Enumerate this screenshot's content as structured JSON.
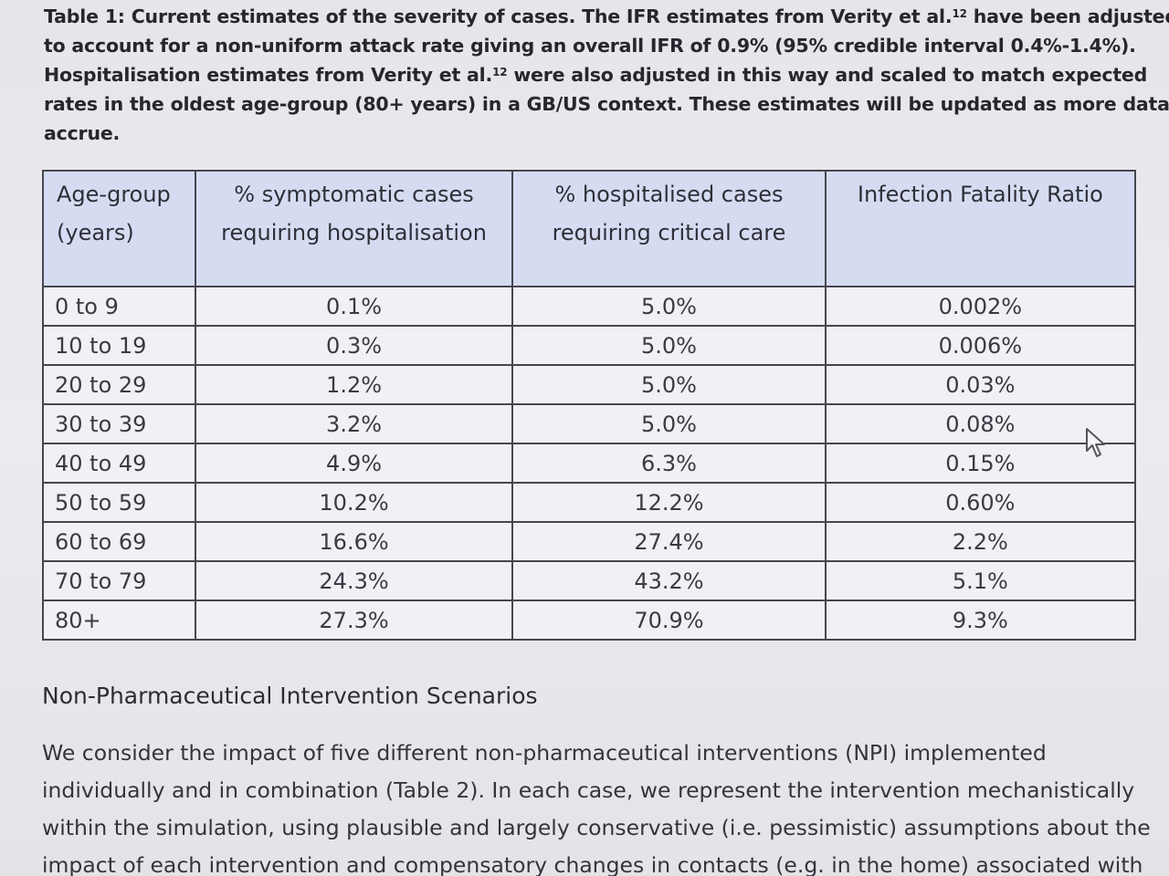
{
  "caption": {
    "lines": [
      "Table 1: Current estimates of the severity of cases. The IFR estimates from Verity et al.",
      "have been adjusted",
      "to account for a non-uniform attack rate giving an overall IFR of 0.9% (95% credible interval 0.4%-1.4%).",
      "Hospitalisation estimates from Verity et al.",
      "were also adjusted in this way and scaled to match expected",
      "rates in the oldest age-group (80+ years) in a GB/US context. These estimates will be updated as more data",
      "accrue."
    ],
    "ref": "12"
  },
  "table": {
    "headers": [
      [
        "Age-group",
        "(years)"
      ],
      [
        "% symptomatic cases",
        "requiring hospitalisation"
      ],
      [
        "% hospitalised cases",
        "requiring critical care"
      ],
      [
        "Infection Fatality Ratio",
        ""
      ]
    ],
    "rows": [
      [
        "0 to 9",
        "0.1%",
        "5.0%",
        "0.002%"
      ],
      [
        "10 to 19",
        "0.3%",
        "5.0%",
        "0.006%"
      ],
      [
        "20 to 29",
        "1.2%",
        "5.0%",
        "0.03%"
      ],
      [
        "30 to 39",
        "3.2%",
        "5.0%",
        "0.08%"
      ],
      [
        "40 to 49",
        "4.9%",
        "6.3%",
        "0.15%"
      ],
      [
        "50 to 59",
        "10.2%",
        "12.2%",
        "0.60%"
      ],
      [
        "60 to 69",
        "16.6%",
        "27.4%",
        "2.2%"
      ],
      [
        "70 to 79",
        "24.3%",
        "43.2%",
        "5.1%"
      ],
      [
        "80+",
        "27.3%",
        "70.9%",
        "9.3%"
      ]
    ]
  },
  "section": {
    "title": "Non-Pharmaceutical Intervention Scenarios",
    "paragraph_lines": [
      "We consider the impact of five different non-pharmaceutical interventions (NPI) implemented",
      "individually and in combination (Table 2). In each case, we represent the intervention mechanistically",
      "within the simulation, using plausible and largely conservative (i.e. pessimistic) assumptions about the",
      "impact of each intervention and compensatory changes in contacts (e.g. in the home) associated with"
    ]
  },
  "colors": {
    "header_bg": "#d5dcf2",
    "border": "#46464f"
  },
  "icons": {
    "cursor": "mouse-pointer-icon"
  }
}
